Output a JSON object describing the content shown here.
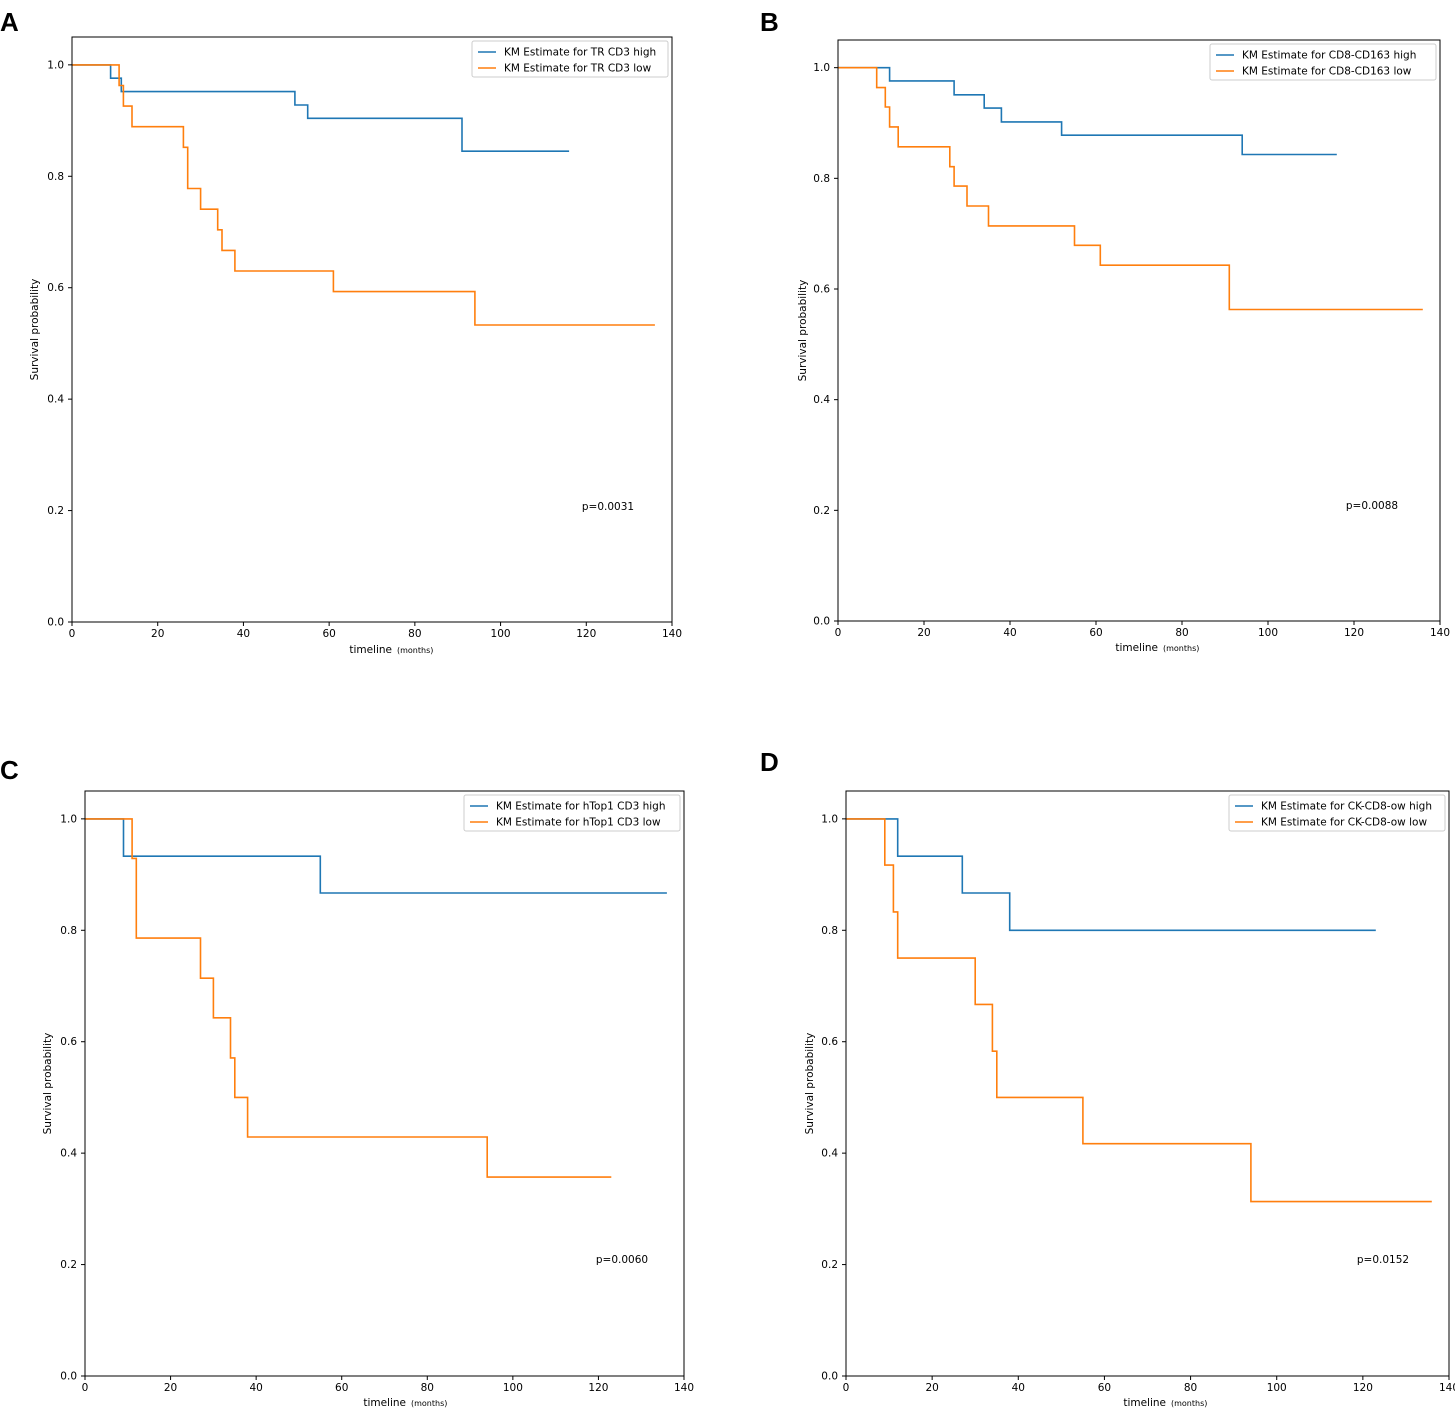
{
  "chart_data": [
    {
      "panel": "A",
      "type": "line",
      "step": true,
      "xlabel": "timeline",
      "xlabel_unit": "(months)",
      "ylabel": "Survival probability",
      "xlim": [
        0,
        140
      ],
      "ylim": [
        0,
        1.05
      ],
      "xticks": [
        0,
        20,
        40,
        60,
        80,
        100,
        120,
        140
      ],
      "yticks": [
        0.0,
        0.2,
        0.4,
        0.6,
        0.8,
        1.0
      ],
      "ytick_labels": [
        "0.0",
        "0.2",
        "0.4",
        "0.6",
        "0.8",
        "1.0"
      ],
      "legend_position": "top-right",
      "annotation": "p=0.0031",
      "series": [
        {
          "name": "KM Estimate for TR CD3 high",
          "color": "#1f77b4",
          "x": [
            0,
            9,
            11.5,
            52,
            55,
            91,
            116
          ],
          "y": [
            1.0,
            0.976,
            0.952,
            0.928,
            0.904,
            0.845,
            0.845
          ]
        },
        {
          "name": "KM Estimate for TR CD3 low",
          "color": "#ff7f0e",
          "x": [
            0,
            11,
            12,
            14,
            26,
            27,
            30,
            34,
            35,
            38,
            61,
            94,
            136
          ],
          "y": [
            1.0,
            0.963,
            0.926,
            0.889,
            0.852,
            0.778,
            0.741,
            0.704,
            0.667,
            0.63,
            0.593,
            0.533,
            0.533
          ]
        }
      ]
    },
    {
      "panel": "B",
      "type": "line",
      "step": true,
      "xlabel": "timeline",
      "xlabel_unit": "(months)",
      "ylabel": "Survival probability",
      "xlim": [
        0,
        140
      ],
      "ylim": [
        0,
        1.05
      ],
      "xticks": [
        0,
        20,
        40,
        60,
        80,
        100,
        120,
        140
      ],
      "yticks": [
        0.0,
        0.2,
        0.4,
        0.6,
        0.8,
        1.0
      ],
      "ytick_labels": [
        "0.0",
        "0.2",
        "0.4",
        "0.6",
        "0.8",
        "1.0"
      ],
      "legend_position": "top-right",
      "annotation": "p=0.0088",
      "series": [
        {
          "name": "KM Estimate for CD8-CD163 high",
          "color": "#1f77b4",
          "x": [
            0,
            12,
            27,
            34,
            38,
            52,
            94,
            116
          ],
          "y": [
            1.0,
            0.976,
            0.951,
            0.927,
            0.902,
            0.878,
            0.843,
            0.843
          ]
        },
        {
          "name": "KM Estimate for CD8-CD163 low",
          "color": "#ff7f0e",
          "x": [
            0,
            9,
            11,
            12,
            14,
            26,
            27,
            30,
            35,
            55,
            61,
            91,
            136
          ],
          "y": [
            1.0,
            0.964,
            0.929,
            0.893,
            0.857,
            0.821,
            0.786,
            0.75,
            0.714,
            0.679,
            0.643,
            0.563,
            0.563
          ]
        }
      ]
    },
    {
      "panel": "C",
      "type": "line",
      "step": true,
      "xlabel": "timeline",
      "xlabel_unit": "(months)",
      "ylabel": "Survival probability",
      "xlim": [
        0,
        140
      ],
      "ylim": [
        0,
        1.05
      ],
      "xticks": [
        0,
        20,
        40,
        60,
        80,
        100,
        120,
        140
      ],
      "yticks": [
        0.0,
        0.2,
        0.4,
        0.6,
        0.8,
        1.0
      ],
      "ytick_labels": [
        "0.0",
        "0.2",
        "0.4",
        "0.6",
        "0.8",
        "1.0"
      ],
      "legend_position": "top-right",
      "annotation": "p=0.0060",
      "series": [
        {
          "name": "KM Estimate for hTop1 CD3 high",
          "color": "#1f77b4",
          "x": [
            0,
            9,
            55,
            136
          ],
          "y": [
            1.0,
            0.933,
            0.867,
            0.867
          ]
        },
        {
          "name": "KM Estimate for hTop1 CD3 low",
          "color": "#ff7f0e",
          "x": [
            0,
            11,
            12,
            27,
            30,
            34,
            35,
            38,
            94,
            123
          ],
          "y": [
            1.0,
            0.929,
            0.786,
            0.714,
            0.643,
            0.571,
            0.5,
            0.429,
            0.357,
            0.357
          ]
        }
      ]
    },
    {
      "panel": "D",
      "type": "line",
      "step": true,
      "xlabel": "timeline",
      "xlabel_unit": "(months)",
      "ylabel": "Survival probability",
      "xlim": [
        0,
        140
      ],
      "ylim": [
        0,
        1.05
      ],
      "xticks": [
        0,
        20,
        40,
        60,
        80,
        100,
        120,
        140
      ],
      "yticks": [
        0.0,
        0.2,
        0.4,
        0.6,
        0.8,
        1.0
      ],
      "ytick_labels": [
        "0.0",
        "0.2",
        "0.4",
        "0.6",
        "0.8",
        "1.0"
      ],
      "legend_position": "top-right",
      "annotation": "p=0.0152",
      "series": [
        {
          "name": "KM Estimate for CK-CD8-ow high",
          "color": "#1f77b4",
          "x": [
            0,
            12,
            27,
            38,
            123
          ],
          "y": [
            1.0,
            0.933,
            0.867,
            0.8,
            0.8
          ]
        },
        {
          "name": "KM Estimate for CK-CD8-ow low",
          "color": "#ff7f0e",
          "x": [
            0,
            9,
            11,
            12,
            30,
            34,
            35,
            55,
            94,
            136
          ],
          "y": [
            1.0,
            0.917,
            0.833,
            0.75,
            0.667,
            0.583,
            0.5,
            0.417,
            0.313,
            0.313
          ]
        }
      ]
    }
  ]
}
